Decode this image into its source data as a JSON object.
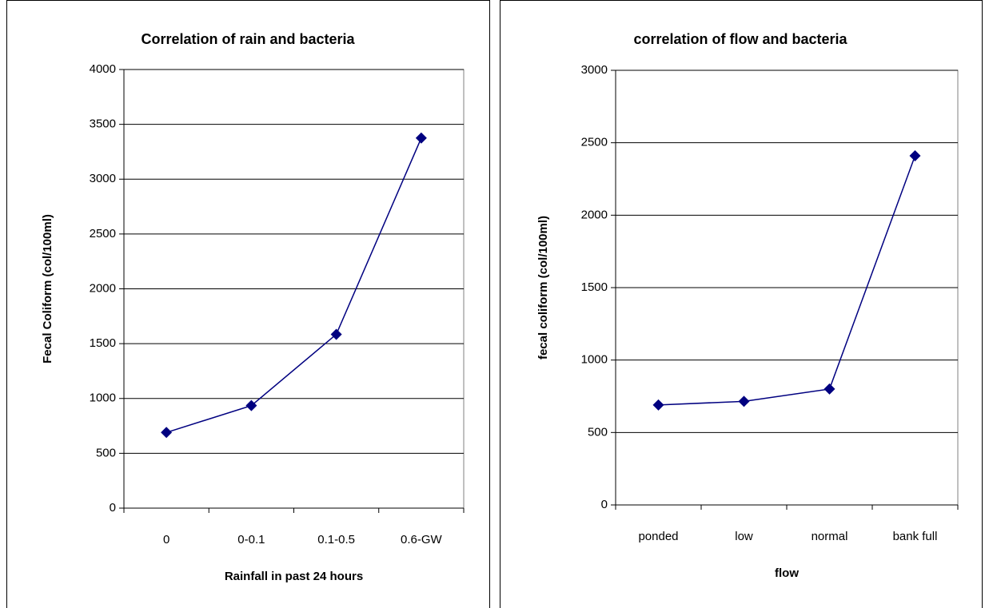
{
  "chart_data": [
    {
      "type": "line",
      "title": "Correlation of rain and bacteria",
      "x_label": "Rainfall in past 24 hours",
      "y_label": "Fecal Coliform (col/100ml)",
      "categories": [
        "0",
        "0-0.1",
        "0.1-0.5",
        "0.6-GW"
      ],
      "values": [
        690,
        935,
        1585,
        3375
      ],
      "color": "#000080",
      "ylim": [
        0,
        4000
      ],
      "yticks": [
        0,
        500,
        1000,
        1500,
        2000,
        2500,
        3000,
        3500,
        4000
      ],
      "grid": true
    },
    {
      "type": "line",
      "title": "correlation of flow and bacteria",
      "x_label": "flow",
      "y_label": "fecal coliform (col/100ml)",
      "categories": [
        "ponded",
        "low",
        "normal",
        "bank full"
      ],
      "values": [
        690,
        715,
        800,
        2410
      ],
      "color": "#000080",
      "ylim": [
        0,
        3000
      ],
      "yticks": [
        0,
        500,
        1000,
        1500,
        2000,
        2500,
        3000
      ],
      "grid": true
    }
  ]
}
